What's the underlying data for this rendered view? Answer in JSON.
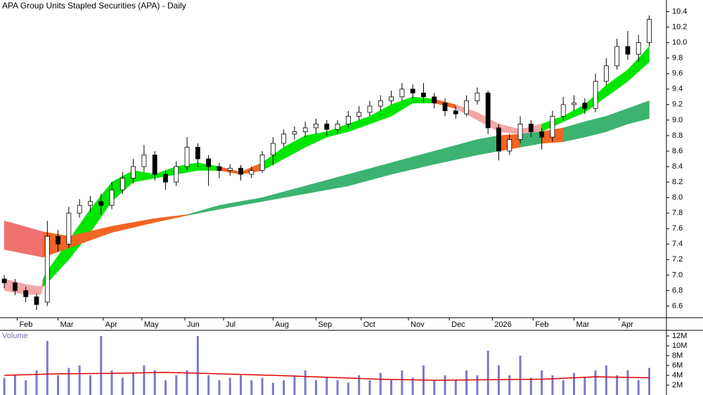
{
  "chart_data": {
    "type": "candlestick",
    "title": "APA Group Units Stapled Securities (APA) - Daily",
    "x": [
      0,
      5,
      10,
      15,
      20,
      25,
      30,
      35,
      40,
      45,
      50,
      55,
      60,
      65,
      70,
      75,
      80,
      85,
      90,
      95,
      100,
      105,
      110,
      115,
      120,
      125,
      130,
      135,
      140,
      145,
      150,
      155,
      160,
      165,
      170,
      175,
      180,
      185,
      190,
      195,
      200,
      205,
      210,
      215,
      220,
      225,
      230,
      235,
      240,
      245,
      250,
      255,
      260,
      265,
      270,
      275,
      280,
      285,
      290,
      295,
      300
    ],
    "open": [
      6.95,
      6.9,
      6.8,
      6.72,
      6.65,
      7.5,
      7.4,
      7.8,
      7.9,
      7.95,
      7.9,
      8.1,
      8.25,
      8.4,
      8.55,
      8.3,
      8.2,
      8.4,
      8.65,
      8.5,
      8.4,
      8.35,
      8.38,
      8.3,
      8.35,
      8.55,
      8.7,
      8.82,
      8.85,
      8.9,
      8.95,
      8.88,
      8.95,
      9.05,
      9.1,
      9.18,
      9.25,
      9.3,
      9.4,
      9.35,
      9.3,
      9.22,
      9.12,
      9.08,
      9.25,
      9.35,
      8.9,
      8.6,
      8.75,
      8.95,
      8.85,
      8.78,
      9.05,
      9.2,
      9.22,
      9.15,
      9.5,
      9.7,
      9.95,
      9.85,
      10.0
    ],
    "high": [
      7.0,
      6.95,
      6.85,
      6.76,
      7.7,
      7.58,
      7.88,
      7.98,
      8.02,
      8.05,
      8.2,
      8.33,
      8.5,
      8.68,
      8.6,
      8.35,
      8.47,
      8.78,
      8.7,
      8.55,
      8.45,
      8.43,
      8.42,
      8.4,
      8.6,
      8.78,
      8.88,
      8.92,
      8.98,
      9.02,
      9.0,
      9.0,
      9.12,
      9.18,
      9.25,
      9.32,
      9.38,
      9.48,
      9.46,
      9.48,
      9.35,
      9.28,
      9.18,
      9.32,
      9.42,
      9.38,
      8.95,
      8.82,
      9.05,
      9.0,
      8.9,
      9.12,
      9.3,
      9.32,
      9.28,
      9.6,
      9.8,
      10.05,
      10.15,
      10.1,
      10.35
    ],
    "low": [
      6.83,
      6.74,
      6.65,
      6.55,
      6.6,
      7.3,
      7.35,
      7.74,
      7.82,
      7.78,
      7.85,
      8.05,
      8.18,
      8.33,
      8.22,
      8.1,
      8.15,
      8.35,
      8.4,
      8.15,
      8.25,
      8.28,
      8.22,
      8.25,
      8.32,
      8.42,
      8.65,
      8.75,
      8.78,
      8.82,
      8.8,
      8.82,
      8.9,
      9.0,
      9.05,
      9.12,
      9.2,
      9.25,
      9.28,
      9.22,
      9.15,
      9.05,
      9.02,
      9.05,
      9.2,
      8.82,
      8.48,
      8.55,
      8.7,
      8.78,
      8.62,
      8.72,
      9.0,
      9.12,
      9.08,
      9.1,
      9.45,
      9.65,
      9.78,
      9.75,
      9.95
    ],
    "close": [
      6.9,
      6.8,
      6.72,
      6.62,
      7.5,
      7.4,
      7.8,
      7.9,
      7.95,
      7.9,
      8.1,
      8.25,
      8.4,
      8.55,
      8.3,
      8.2,
      8.4,
      8.65,
      8.5,
      8.4,
      8.35,
      8.38,
      8.3,
      8.35,
      8.55,
      8.7,
      8.82,
      8.85,
      8.9,
      8.95,
      8.88,
      8.95,
      9.05,
      9.1,
      9.18,
      9.25,
      9.3,
      9.4,
      9.35,
      9.3,
      9.22,
      9.12,
      9.08,
      9.25,
      9.35,
      8.9,
      8.6,
      8.75,
      8.95,
      8.85,
      8.78,
      9.05,
      9.2,
      9.22,
      9.15,
      9.5,
      9.7,
      9.95,
      9.85,
      10.0,
      10.3
    ],
    "up_color": "#ffffff",
    "down_color": "#000000",
    "xlim": [
      -2,
      308
    ],
    "xticks": [
      {
        "value": 6,
        "label": "Feb"
      },
      {
        "value": 25,
        "label": "Mar"
      },
      {
        "value": 46,
        "label": "Apr"
      },
      {
        "value": 64,
        "label": "May"
      },
      {
        "value": 84,
        "label": "Jun"
      },
      {
        "value": 102,
        "label": "Jul"
      },
      {
        "value": 125,
        "label": "Aug"
      },
      {
        "value": 145,
        "label": "Sep"
      },
      {
        "value": 166,
        "label": "Oct"
      },
      {
        "value": 188,
        "label": "Nov"
      },
      {
        "value": 207,
        "label": "Dec"
      },
      {
        "value": 227,
        "label": "2026"
      },
      {
        "value": 246,
        "label": "Feb"
      },
      {
        "value": 265,
        "label": "Mar"
      },
      {
        "value": 286,
        "label": "Apr"
      }
    ],
    "ylim": [
      6.45,
      10.55
    ],
    "yticks": [
      6.6,
      6.8,
      {
        "value": 7,
        "label": "7.0"
      },
      7.2,
      7.4,
      7.6,
      7.8,
      {
        "value": 8,
        "label": "8.0"
      },
      8.2,
      8.4,
      8.6,
      8.8,
      {
        "value": 9,
        "label": "9.0"
      },
      9.2,
      9.4,
      9.6,
      9.8,
      {
        "value": 10,
        "label": "10.0"
      },
      10.2,
      10.4
    ],
    "fast_band": {
      "x": [
        0,
        10,
        17,
        18,
        20,
        30,
        40,
        50,
        60,
        70,
        80,
        90,
        100,
        110,
        120,
        130,
        140,
        150,
        160,
        170,
        180,
        190,
        200,
        210,
        220,
        230,
        240,
        250,
        260,
        270,
        280,
        290,
        300
      ],
      "upper": [
        6.95,
        6.88,
        6.85,
        6.95,
        7.05,
        7.45,
        7.85,
        8.2,
        8.35,
        8.3,
        8.4,
        8.45,
        8.4,
        8.33,
        8.45,
        8.65,
        8.8,
        8.85,
        8.95,
        9.05,
        9.2,
        9.3,
        9.27,
        9.2,
        9.1,
        8.95,
        8.88,
        8.95,
        9.05,
        9.2,
        9.45,
        9.65,
        9.95
      ],
      "lower": [
        6.8,
        6.75,
        6.75,
        6.85,
        6.9,
        7.2,
        7.55,
        7.95,
        8.2,
        8.25,
        8.3,
        8.35,
        8.35,
        8.3,
        8.35,
        8.5,
        8.65,
        8.78,
        8.85,
        8.95,
        9.05,
        9.22,
        9.22,
        9.15,
        9.0,
        8.85,
        8.82,
        8.85,
        8.98,
        9.1,
        9.3,
        9.5,
        9.75
      ],
      "colors": [
        "#f4a6a6",
        "#f4a6a6",
        "#f4a6a6",
        "#00e600",
        "#00e600",
        "#00e600",
        "#00e600",
        "#00e600",
        "#00e600",
        "#00e600",
        "#00e600",
        "#00e600",
        "#f26522",
        "#f26522",
        "#00e600",
        "#00e600",
        "#00e600",
        "#00e600",
        "#00e600",
        "#00e600",
        "#00e600",
        "#00e600",
        "#f26522",
        "#f4a6a6",
        "#f4a6a6",
        "#f4a6a6",
        "#f4a6a6",
        "#00e600",
        "#00e600",
        "#00e600",
        "#00e600",
        "#00e600"
      ]
    },
    "slow_band": {
      "x": [
        0,
        18,
        30,
        50,
        70,
        85,
        100,
        120,
        140,
        160,
        180,
        200,
        220,
        230,
        240,
        250,
        260,
        270,
        280,
        290,
        300
      ],
      "upper": [
        7.7,
        7.56,
        7.5,
        7.63,
        7.73,
        7.78,
        7.9,
        8.0,
        8.15,
        8.3,
        8.45,
        8.6,
        8.75,
        8.8,
        8.82,
        8.85,
        8.9,
        8.98,
        9.05,
        9.15,
        9.25
      ],
      "lower": [
        7.33,
        7.23,
        7.35,
        7.55,
        7.68,
        7.77,
        7.85,
        7.95,
        8.05,
        8.15,
        8.3,
        8.43,
        8.55,
        8.6,
        8.65,
        8.7,
        8.72,
        8.78,
        8.85,
        8.95,
        9.02
      ],
      "colors": [
        "#f07070",
        "#f26522",
        "#f26522",
        "#f26522",
        "#f26522",
        "#3cb371",
        "#3cb371",
        "#3cb371",
        "#3cb371",
        "#3cb371",
        "#3cb371",
        "#3cb371",
        "#3cb371",
        "#f26522",
        "#3cb371",
        "#f26522",
        "#3cb371",
        "#3cb371",
        "#3cb371",
        "#3cb371"
      ]
    },
    "volume": {
      "title": "Volume",
      "color": "#7a7acc",
      "values": [
        3500000,
        4000000,
        3000000,
        5000000,
        11000000,
        4000000,
        5500000,
        6000000,
        4000000,
        12000000,
        5000000,
        3500000,
        4500000,
        6000000,
        5000000,
        3000000,
        4000000,
        5000000,
        12000000,
        4000000,
        3000000,
        3500000,
        4000000,
        3000000,
        3500000,
        2500000,
        3000000,
        4000000,
        5000000,
        3000000,
        3500000,
        3000000,
        2500000,
        4000000,
        3000000,
        4500000,
        3000000,
        5000000,
        3500000,
        6000000,
        3000000,
        4000000,
        3000000,
        5000000,
        4000000,
        9000000,
        6000000,
        4000000,
        8000000,
        3500000,
        5000000,
        4000000,
        3000000,
        4500000,
        3500000,
        5000000,
        6000000,
        4000000,
        5000000,
        3000000,
        5500000
      ],
      "average": {
        "x": [
          0,
          25,
          50,
          75,
          100,
          125,
          150,
          175,
          200,
          225,
          250,
          275,
          300
        ],
        "values": [
          4000000,
          4300000,
          4400000,
          4600000,
          4300000,
          4000000,
          3600000,
          3200000,
          3000000,
          3100000,
          3200000,
          3700000,
          3500000
        ],
        "color": "#e00000"
      },
      "ylim": [
        0,
        13000000
      ],
      "yticks": [
        {
          "value": 2000000,
          "label": "2M"
        },
        {
          "value": 4000000,
          "label": "4M"
        },
        {
          "value": 6000000,
          "label": "6M"
        },
        {
          "value": 8000000,
          "label": "8M"
        },
        {
          "value": 10000000,
          "label": "10M"
        },
        {
          "value": 12000000,
          "label": "12M"
        }
      ]
    }
  }
}
